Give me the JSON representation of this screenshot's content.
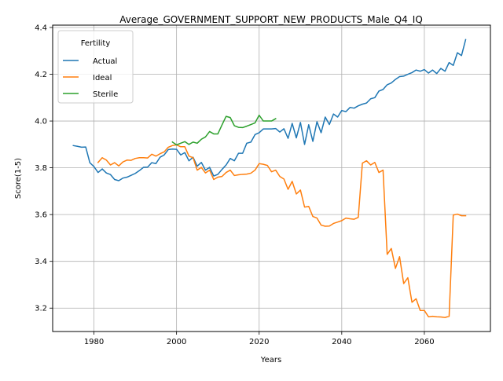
{
  "chart_data": {
    "type": "line",
    "title": "Average_GOVERNMENT_SUPPORT_NEW_PRODUCTS_Male_Q4_IQ",
    "xlabel": "Years",
    "ylabel": "Score(1-5)",
    "xlim": [
      1970,
      2076
    ],
    "ylim": [
      3.1,
      4.41
    ],
    "xticks": [
      1980,
      2000,
      2020,
      2040,
      2060
    ],
    "yticks": [
      3.2,
      3.4,
      3.6,
      3.8,
      4.0,
      4.2,
      4.4
    ],
    "xtick_labels": [
      "1980",
      "2000",
      "2020",
      "2040",
      "2060"
    ],
    "ytick_labels": [
      "3.2",
      "3.4",
      "3.6",
      "3.8",
      "4.0",
      "4.2",
      "4.4"
    ],
    "grid": true,
    "legend": {
      "title": "Fertility",
      "placement": "upper-left"
    },
    "series": [
      {
        "name": "Actual",
        "color": "#1f77b4",
        "points": [
          [
            1975,
            3.895
          ],
          [
            1976,
            3.892
          ],
          [
            1977,
            3.888
          ],
          [
            1978,
            3.889
          ],
          [
            1979,
            3.822
          ],
          [
            1980,
            3.805
          ],
          [
            1981,
            3.78
          ],
          [
            1982,
            3.795
          ],
          [
            1983,
            3.778
          ],
          [
            1984,
            3.771
          ],
          [
            1985,
            3.75
          ],
          [
            1986,
            3.745
          ],
          [
            1987,
            3.756
          ],
          [
            1988,
            3.76
          ],
          [
            1989,
            3.768
          ],
          [
            1990,
            3.776
          ],
          [
            1991,
            3.788
          ],
          [
            1992,
            3.802
          ],
          [
            1993,
            3.803
          ],
          [
            1994,
            3.822
          ],
          [
            1995,
            3.818
          ],
          [
            1996,
            3.845
          ],
          [
            1997,
            3.855
          ],
          [
            1998,
            3.878
          ],
          [
            1999,
            3.88
          ],
          [
            2000,
            3.879
          ],
          [
            2001,
            3.855
          ],
          [
            2002,
            3.865
          ],
          [
            2003,
            3.83
          ],
          [
            2004,
            3.845
          ],
          [
            2005,
            3.807
          ],
          [
            2006,
            3.823
          ],
          [
            2007,
            3.79
          ],
          [
            2008,
            3.802
          ],
          [
            2009,
            3.765
          ],
          [
            2010,
            3.772
          ],
          [
            2011,
            3.793
          ],
          [
            2012,
            3.812
          ],
          [
            2013,
            3.84
          ],
          [
            2014,
            3.83
          ],
          [
            2015,
            3.862
          ],
          [
            2016,
            3.862
          ],
          [
            2017,
            3.905
          ],
          [
            2018,
            3.91
          ],
          [
            2019,
            3.942
          ],
          [
            2020,
            3.95
          ],
          [
            2021,
            3.966
          ],
          [
            2022,
            3.966
          ],
          [
            2023,
            3.966
          ],
          [
            2024,
            3.968
          ],
          [
            2025,
            3.953
          ],
          [
            2026,
            3.967
          ],
          [
            2027,
            3.926
          ],
          [
            2028,
            3.99
          ],
          [
            2029,
            3.928
          ],
          [
            2030,
            3.994
          ],
          [
            2031,
            3.9
          ],
          [
            2032,
            3.984
          ],
          [
            2033,
            3.913
          ],
          [
            2034,
            3.997
          ],
          [
            2035,
            3.95
          ],
          [
            2036,
            4.017
          ],
          [
            2037,
            3.985
          ],
          [
            2038,
            4.03
          ],
          [
            2039,
            4.017
          ],
          [
            2040,
            4.045
          ],
          [
            2041,
            4.04
          ],
          [
            2042,
            4.058
          ],
          [
            2043,
            4.055
          ],
          [
            2044,
            4.065
          ],
          [
            2045,
            4.072
          ],
          [
            2046,
            4.077
          ],
          [
            2047,
            4.095
          ],
          [
            2048,
            4.1
          ],
          [
            2049,
            4.128
          ],
          [
            2050,
            4.135
          ],
          [
            2051,
            4.155
          ],
          [
            2052,
            4.163
          ],
          [
            2053,
            4.178
          ],
          [
            2054,
            4.19
          ],
          [
            2055,
            4.192
          ],
          [
            2056,
            4.2
          ],
          [
            2057,
            4.207
          ],
          [
            2058,
            4.218
          ],
          [
            2059,
            4.213
          ],
          [
            2060,
            4.22
          ],
          [
            2061,
            4.205
          ],
          [
            2062,
            4.218
          ],
          [
            2063,
            4.203
          ],
          [
            2064,
            4.225
          ],
          [
            2065,
            4.213
          ],
          [
            2066,
            4.25
          ],
          [
            2067,
            4.238
          ],
          [
            2068,
            4.292
          ],
          [
            2069,
            4.28
          ],
          [
            2070,
            4.348
          ]
        ]
      },
      {
        "name": "Ideal",
        "color": "#ff7f0e",
        "points": [
          [
            1981,
            3.823
          ],
          [
            1982,
            3.843
          ],
          [
            1983,
            3.833
          ],
          [
            1984,
            3.812
          ],
          [
            1985,
            3.822
          ],
          [
            1986,
            3.808
          ],
          [
            1987,
            3.825
          ],
          [
            1988,
            3.833
          ],
          [
            1989,
            3.832
          ],
          [
            1990,
            3.84
          ],
          [
            1991,
            3.843
          ],
          [
            1992,
            3.843
          ],
          [
            1993,
            3.842
          ],
          [
            1994,
            3.858
          ],
          [
            1995,
            3.85
          ],
          [
            1996,
            3.86
          ],
          [
            1997,
            3.868
          ],
          [
            1998,
            3.888
          ],
          [
            1999,
            3.895
          ],
          [
            2000,
            3.898
          ],
          [
            2001,
            3.89
          ],
          [
            2002,
            3.89
          ],
          [
            2003,
            3.85
          ],
          [
            2004,
            3.843
          ],
          [
            2005,
            3.79
          ],
          [
            2006,
            3.802
          ],
          [
            2007,
            3.778
          ],
          [
            2008,
            3.79
          ],
          [
            2009,
            3.75
          ],
          [
            2010,
            3.76
          ],
          [
            2011,
            3.763
          ],
          [
            2012,
            3.78
          ],
          [
            2013,
            3.79
          ],
          [
            2014,
            3.767
          ],
          [
            2015,
            3.77
          ],
          [
            2016,
            3.772
          ],
          [
            2017,
            3.773
          ],
          [
            2018,
            3.777
          ],
          [
            2019,
            3.79
          ],
          [
            2020,
            3.818
          ],
          [
            2021,
            3.815
          ],
          [
            2022,
            3.81
          ],
          [
            2023,
            3.783
          ],
          [
            2024,
            3.79
          ],
          [
            2025,
            3.763
          ],
          [
            2026,
            3.752
          ],
          [
            2027,
            3.708
          ],
          [
            2028,
            3.742
          ],
          [
            2029,
            3.688
          ],
          [
            2030,
            3.705
          ],
          [
            2031,
            3.632
          ],
          [
            2032,
            3.635
          ],
          [
            2033,
            3.592
          ],
          [
            2034,
            3.585
          ],
          [
            2035,
            3.555
          ],
          [
            2036,
            3.55
          ],
          [
            2037,
            3.551
          ],
          [
            2038,
            3.562
          ],
          [
            2039,
            3.568
          ],
          [
            2040,
            3.574
          ],
          [
            2041,
            3.585
          ],
          [
            2042,
            3.582
          ],
          [
            2043,
            3.58
          ],
          [
            2044,
            3.588
          ],
          [
            2045,
            3.82
          ],
          [
            2046,
            3.83
          ],
          [
            2047,
            3.812
          ],
          [
            2048,
            3.823
          ],
          [
            2049,
            3.78
          ],
          [
            2050,
            3.79
          ],
          [
            2051,
            3.43
          ],
          [
            2052,
            3.455
          ],
          [
            2053,
            3.37
          ],
          [
            2054,
            3.42
          ],
          [
            2055,
            3.305
          ],
          [
            2056,
            3.33
          ],
          [
            2057,
            3.225
          ],
          [
            2058,
            3.24
          ],
          [
            2059,
            3.19
          ],
          [
            2060,
            3.19
          ],
          [
            2061,
            3.163
          ],
          [
            2062,
            3.165
          ],
          [
            2063,
            3.163
          ],
          [
            2064,
            3.162
          ],
          [
            2065,
            3.16
          ],
          [
            2066,
            3.165
          ],
          [
            2067,
            3.598
          ],
          [
            2068,
            3.602
          ],
          [
            2069,
            3.595
          ],
          [
            2070,
            3.595
          ]
        ]
      },
      {
        "name": "Sterile",
        "color": "#2ca02c",
        "points": [
          [
            1999,
            3.91
          ],
          [
            2000,
            3.898
          ],
          [
            2001,
            3.905
          ],
          [
            2002,
            3.912
          ],
          [
            2003,
            3.9
          ],
          [
            2004,
            3.91
          ],
          [
            2005,
            3.905
          ],
          [
            2006,
            3.922
          ],
          [
            2007,
            3.932
          ],
          [
            2008,
            3.955
          ],
          [
            2009,
            3.945
          ],
          [
            2010,
            3.945
          ],
          [
            2011,
            3.983
          ],
          [
            2012,
            4.02
          ],
          [
            2013,
            4.015
          ],
          [
            2014,
            3.98
          ],
          [
            2015,
            3.973
          ],
          [
            2016,
            3.972
          ],
          [
            2017,
            3.978
          ],
          [
            2018,
            3.985
          ],
          [
            2019,
            3.992
          ],
          [
            2020,
            4.025
          ],
          [
            2021,
            4.0
          ],
          [
            2022,
            4.0
          ],
          [
            2023,
            4.0
          ],
          [
            2024,
            4.01
          ]
        ]
      }
    ]
  }
}
